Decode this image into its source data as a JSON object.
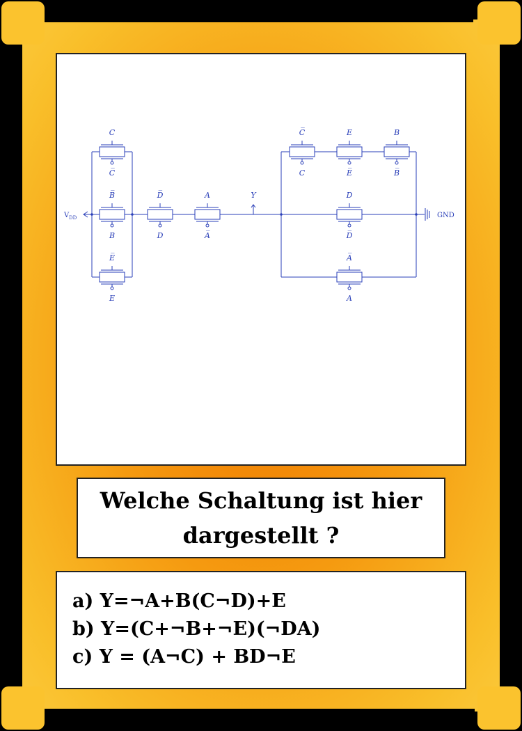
{
  "diagram": {
    "vdd_label": "V",
    "vdd_sub": "DD",
    "gnd_label": "GND",
    "output_label": "Y",
    "left_gates": [
      {
        "top": "C",
        "bottom": "C̅"
      },
      {
        "top": "B̅",
        "bottom": "B"
      },
      {
        "top": "E̅",
        "bottom": "E"
      }
    ],
    "mid_gates": [
      {
        "top": "D̅",
        "bottom": "D"
      },
      {
        "top": "A",
        "bottom": "A̅"
      }
    ],
    "right_top_gates": [
      {
        "top": "C̅",
        "bottom": "C"
      },
      {
        "top": "E",
        "bottom": "E̅"
      },
      {
        "top": "B",
        "bottom": "B̅"
      }
    ],
    "right_mid_gate": {
      "top": "D",
      "bottom": "D̅"
    },
    "right_bottom_gate": {
      "top": "A̅",
      "bottom": "A"
    },
    "line_color": "#2a3fb8"
  },
  "question": "Welche Schaltung ist hier dargestellt ?",
  "answers": [
    "a) Y=¬A+B(C¬D)+E",
    "b) Y=(C+¬B+¬E)(¬DA)",
    "c) Y = (A¬C) + BD¬E"
  ],
  "colors": {
    "card_center": "#f07a00",
    "card_edge": "#fbc83a",
    "frame": "#000000"
  }
}
